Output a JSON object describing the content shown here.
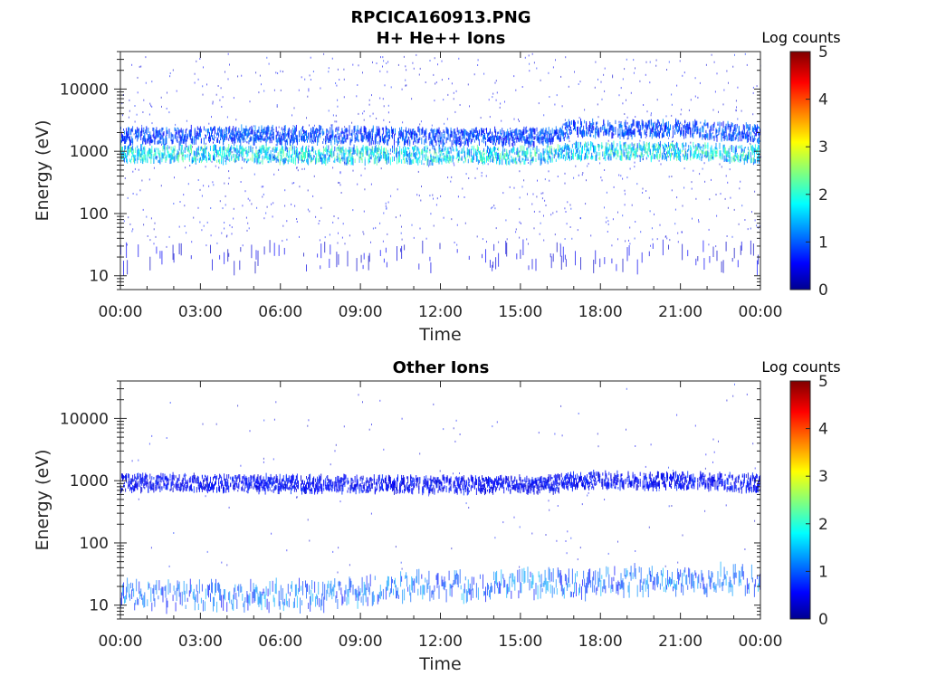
{
  "figure_title": "RPCICA160913.PNG",
  "colors": {
    "colormap": [
      "#00008f",
      "#0000ff",
      "#00ffff",
      "#ffff00",
      "#ff0000",
      "#800000"
    ],
    "axis": "#262626",
    "background": "#ffffff"
  },
  "chart_data": [
    {
      "type": "heatmap",
      "title": "H+ He++ Ions",
      "xlabel": "Time",
      "ylabel": "Energy (eV)",
      "yscale": "log",
      "ylim": [
        6,
        40000
      ],
      "ytick_values": [
        10,
        100,
        1000,
        10000
      ],
      "ytick_labels": [
        "10",
        "100",
        "1000",
        "10000"
      ],
      "xlim": [
        "00:00",
        "24:00"
      ],
      "xtick_labels": [
        "00:00",
        "03:00",
        "06:00",
        "09:00",
        "12:00",
        "15:00",
        "18:00",
        "21:00",
        "00:00"
      ],
      "colorbar": {
        "label": "Log counts",
        "range": [
          0,
          5
        ],
        "ticks": [
          "0",
          "1",
          "2",
          "3",
          "4",
          "5"
        ]
      },
      "bands": [
        {
          "description": "main ion band",
          "energy_center_eV": [
            900,
            900,
            880,
            870,
            860,
            860,
            860,
            1000,
            1000,
            1000,
            880
          ],
          "time_hours": [
            0,
            3,
            6,
            9,
            12,
            15,
            16,
            17,
            19,
            21,
            24
          ],
          "peak_log_counts": 2.5
        },
        {
          "description": "upper band",
          "energy_center_eV": [
            1800,
            1800,
            1800,
            1800,
            1700,
            1700,
            1700,
            2300,
            2300,
            2300,
            1900
          ],
          "time_hours": [
            0,
            3,
            6,
            9,
            12,
            15,
            16,
            17,
            19,
            21,
            24
          ],
          "peak_log_counts": 1.3
        },
        {
          "description": "low energy sparse",
          "energy_center_eV": [
            20,
            20
          ],
          "time_hours": [
            0,
            24
          ],
          "peak_log_counts": 0.6
        }
      ]
    },
    {
      "type": "heatmap",
      "title": "Other Ions",
      "xlabel": "Time",
      "ylabel": "Energy (eV)",
      "yscale": "log",
      "ylim": [
        6,
        40000
      ],
      "ytick_values": [
        10,
        100,
        1000,
        10000
      ],
      "ytick_labels": [
        "10",
        "100",
        "1000",
        "10000"
      ],
      "xlim": [
        "00:00",
        "24:00"
      ],
      "xtick_labels": [
        "00:00",
        "03:00",
        "06:00",
        "09:00",
        "12:00",
        "15:00",
        "18:00",
        "21:00",
        "00:00"
      ],
      "colorbar": {
        "label": "Log counts",
        "range": [
          0,
          5
        ],
        "ticks": [
          "0",
          "1",
          "2",
          "3",
          "4",
          "5"
        ]
      },
      "bands": [
        {
          "description": "ion band near 1 keV",
          "energy_center_eV": [
            920,
            920,
            880,
            870,
            860,
            860,
            860,
            1000,
            1000,
            1000,
            900
          ],
          "time_hours": [
            0,
            3,
            6,
            9,
            12,
            15,
            16,
            17,
            19,
            21,
            24
          ],
          "peak_log_counts": 0.8
        },
        {
          "description": "low energy band",
          "energy_center_eV": [
            14,
            14,
            14,
            16,
            20,
            20,
            22,
            22,
            25,
            25,
            25
          ],
          "time_hours": [
            0,
            3,
            6,
            9,
            10,
            12,
            15,
            17,
            19,
            21,
            24
          ],
          "peak_log_counts": 1.5
        }
      ]
    }
  ]
}
